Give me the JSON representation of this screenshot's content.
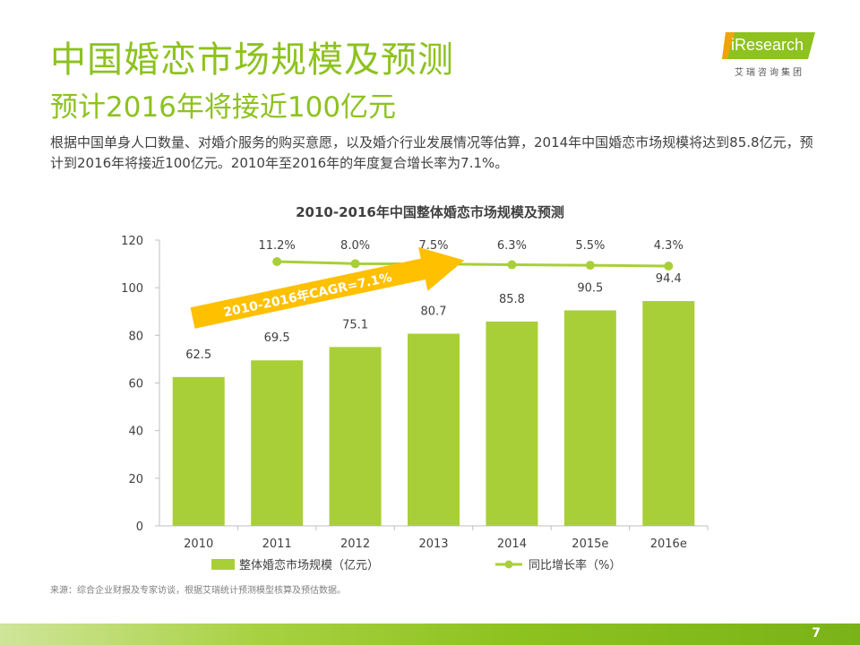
{
  "header": {
    "title": "中国婚恋市场规模及预测",
    "subtitle": "预计2016年将接近100亿元",
    "description": "根据中国单身人口数量、对婚介服务的购买意愿，以及婚介行业发展情况等估算，2014年中国婚恋市场规模将达到85.8亿元，预计到2016年将接近100亿元。2010年至2016年的年度复合增长率为7.1%。"
  },
  "logo": {
    "text": "iResearch",
    "subtext": "艾瑞咨询集团"
  },
  "chart_data": {
    "type": "bar",
    "title": "2010-2016年中国整体婚恋市场规模及预测",
    "categories": [
      "2010",
      "2011",
      "2012",
      "2013",
      "2014",
      "2015e",
      "2016e"
    ],
    "yticks": [
      "0",
      "20",
      "40",
      "60",
      "80",
      "100",
      "120"
    ],
    "ylim": [
      0,
      120
    ],
    "grid": false,
    "legend_position": "bottom",
    "series": [
      {
        "name": "整体婚恋市场规模（亿元）",
        "type": "bar",
        "values": [
          62.5,
          69.5,
          75.1,
          80.7,
          85.8,
          90.5,
          94.4
        ],
        "labels": [
          "62.5",
          "69.5",
          "75.1",
          "80.7",
          "85.8",
          "90.5",
          "94.4"
        ],
        "color": "#a9cf38"
      },
      {
        "name": "同比增长率（%）",
        "type": "line",
        "x": [
          "2011",
          "2012",
          "2013",
          "2014",
          "2015e",
          "2016e"
        ],
        "values": [
          11.2,
          8.0,
          7.5,
          6.3,
          5.5,
          4.3
        ],
        "labels": [
          "11.2%",
          "8.0%",
          "7.5%",
          "6.3%",
          "5.5%",
          "4.3%"
        ],
        "color": "#a9cf38"
      }
    ],
    "annotation": {
      "text": "2010-2016年CAGR=7.1%",
      "color": "#ffc000"
    }
  },
  "source": "来源：综合企业财报及专家访谈，根据艾瑞统计预测模型核算及预估数据。",
  "page_number": "7"
}
